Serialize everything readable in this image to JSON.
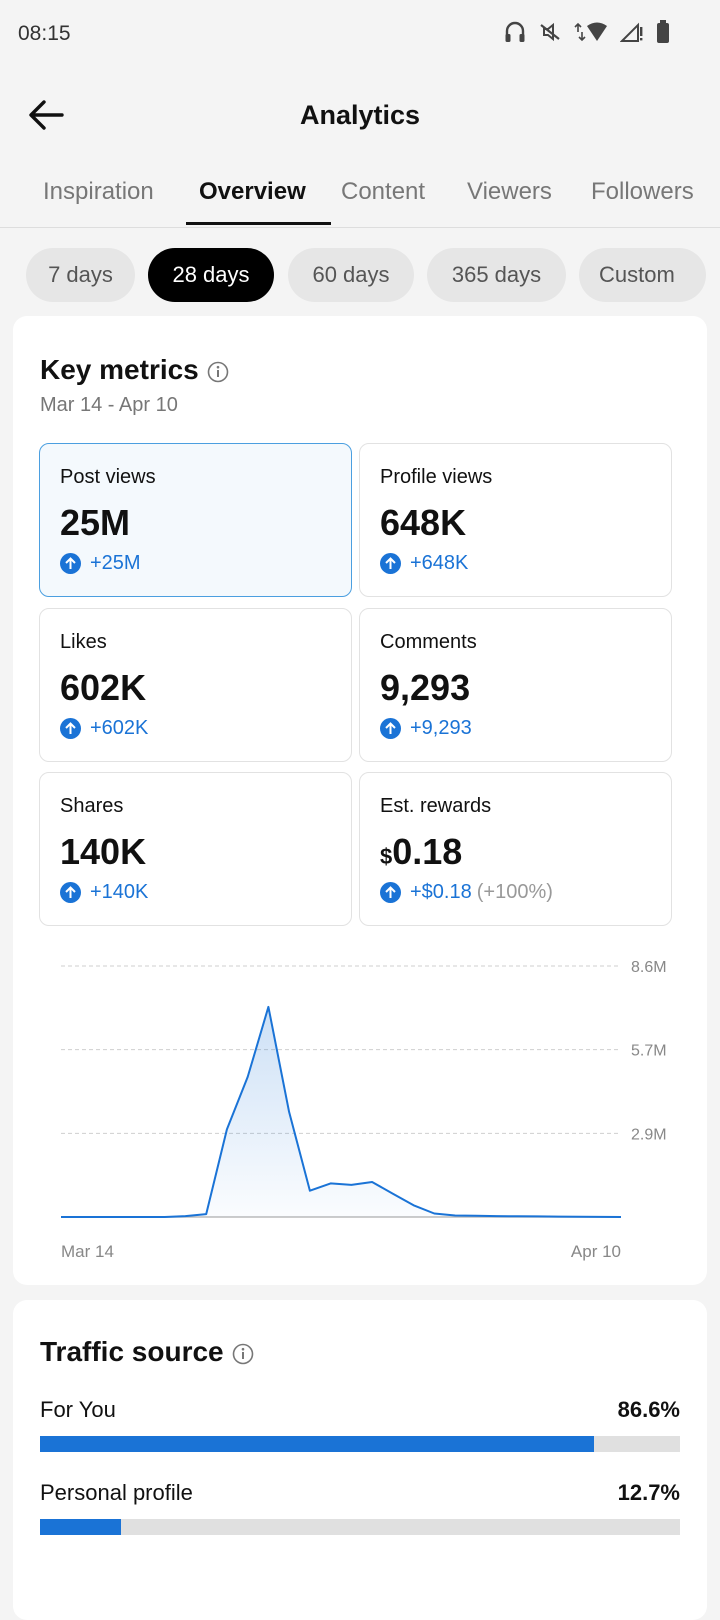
{
  "status_bar": {
    "time": "08:15"
  },
  "header": {
    "title": "Analytics"
  },
  "tabs": [
    {
      "label": "Inspiration"
    },
    {
      "label": "Overview"
    },
    {
      "label": "Content"
    },
    {
      "label": "Viewers"
    },
    {
      "label": "Followers"
    }
  ],
  "active_tab": "Overview",
  "ranges": [
    {
      "label": "7 days"
    },
    {
      "label": "28 days"
    },
    {
      "label": "60 days"
    },
    {
      "label": "365 days"
    },
    {
      "label": "Custom"
    }
  ],
  "active_range": "28 days",
  "key_metrics": {
    "title": "Key metrics",
    "date_range": "Mar 14 - Apr 10",
    "items": [
      {
        "label": "Post views",
        "value": "25M",
        "change": "+25M"
      },
      {
        "label": "Profile views",
        "value": "648K",
        "change": "+648K"
      },
      {
        "label": "Likes",
        "value": "602K",
        "change": "+602K"
      },
      {
        "label": "Comments",
        "value": "9,293",
        "change": "+9,293"
      },
      {
        "label": "Shares",
        "value": "140K",
        "change": "+140K"
      },
      {
        "label": "Est. rewards",
        "currency": "$",
        "value": "0.18",
        "change": "+$0.18",
        "change_pct": "(+100%)"
      }
    ]
  },
  "chart_data": {
    "type": "area",
    "x_labels": [
      "Mar 14",
      "Apr 10"
    ],
    "y_ticks": [
      "2.9M",
      "5.7M",
      "8.6M"
    ],
    "ylim": [
      0,
      8600000
    ],
    "grid": true,
    "values": [
      0,
      0,
      0,
      0,
      0,
      0,
      30000,
      100000,
      3000000,
      4800000,
      7200000,
      3600000,
      900000,
      1150000,
      1100000,
      1200000,
      800000,
      400000,
      120000,
      50000,
      40000,
      30000,
      25000,
      20000,
      15000,
      10000,
      5000,
      0
    ],
    "color": "#1a73d6"
  },
  "traffic_source": {
    "title": "Traffic source",
    "items": [
      {
        "label": "For You",
        "percent": "86.6%",
        "fraction": 0.866
      },
      {
        "label": "Personal profile",
        "percent": "12.7%",
        "fraction": 0.127
      }
    ]
  },
  "colors": {
    "accent": "#1a73d6",
    "background": "#f4f4f4"
  }
}
